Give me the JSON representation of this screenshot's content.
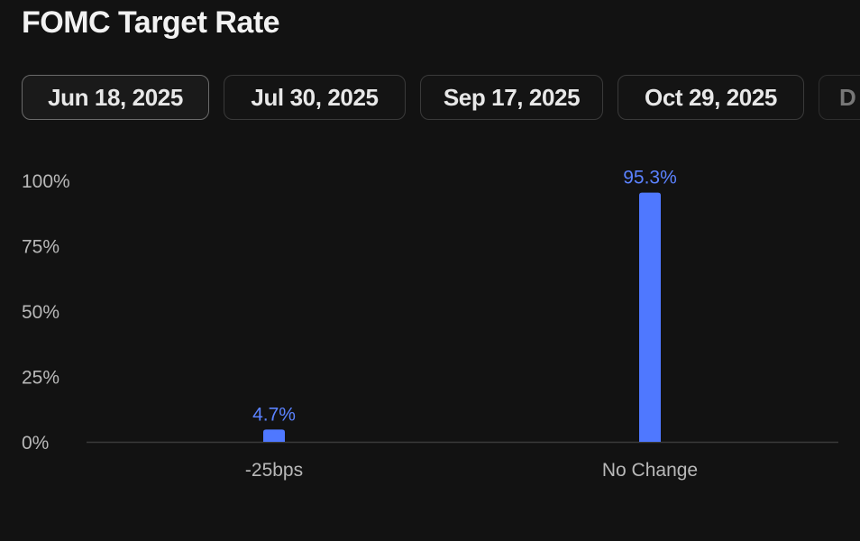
{
  "title": "FOMC Target Rate",
  "tabs": [
    {
      "label": "Jun 18, 2025",
      "active": true
    },
    {
      "label": "Jul 30, 2025",
      "active": false
    },
    {
      "label": "Sep 17, 2025",
      "active": false
    },
    {
      "label": "Oct 29, 2025",
      "active": false
    },
    {
      "label": "D",
      "active": false
    }
  ],
  "colors": {
    "background": "#121212",
    "bar": "#4f78ff",
    "data_label": "#5b82ff",
    "axis": "#3a3a3a"
  },
  "chart_data": {
    "type": "bar",
    "categories": [
      "-25bps",
      "No Change"
    ],
    "values": [
      4.7,
      95.3
    ],
    "data_labels": [
      "4.7%",
      "95.3%"
    ],
    "yticks": [
      "0%",
      "25%",
      "50%",
      "75%",
      "100%"
    ],
    "ytick_values": [
      0,
      25,
      50,
      75,
      100
    ],
    "ylim": [
      0,
      100
    ],
    "grid": false
  }
}
